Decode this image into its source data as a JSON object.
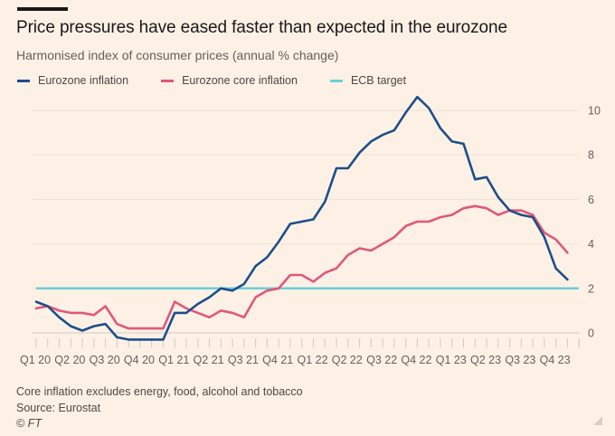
{
  "title": "Price pressures have eased faster than expected in the eurozone",
  "subtitle": "Harmonised index of consumer prices (annual % change)",
  "legend": [
    {
      "label": "Eurozone inflation",
      "color": "#1e4e8a"
    },
    {
      "label": "Eurozone core inflation",
      "color": "#e0587a"
    },
    {
      "label": "ECB target",
      "color": "#6ccfd8"
    }
  ],
  "notes": {
    "line1": "Core inflation excludes energy, food, alcohol and tobacco",
    "line2": "Source: Eurostat",
    "line3": "© FT"
  },
  "chart_data": {
    "type": "line",
    "title": "Price pressures have eased faster than expected in the eurozone",
    "subtitle": "Harmonised index of consumer prices (annual % change)",
    "xlabel": "",
    "ylabel": "",
    "frequency": "monthly",
    "x_start": "2020-01",
    "x_categories": [
      "Q1 20",
      "Q2 20",
      "Q3 20",
      "Q4 20",
      "Q1 21",
      "Q2 21",
      "Q3 21",
      "Q4 21",
      "Q1 22",
      "Q2 22",
      "Q3 22",
      "Q4 22",
      "Q1 23",
      "Q2 23",
      "Q3 23",
      "Q4 23"
    ],
    "yticks": [
      0,
      2,
      4,
      6,
      8,
      10
    ],
    "ylim": [
      -0.5,
      10.8
    ],
    "grid": true,
    "legend_position": "top-left",
    "yaxis_side": "right",
    "series": [
      {
        "name": "Eurozone inflation",
        "color": "#1e4e8a",
        "values": [
          1.4,
          1.2,
          0.7,
          0.3,
          0.1,
          0.3,
          0.4,
          -0.2,
          -0.3,
          -0.3,
          -0.3,
          -0.3,
          0.9,
          0.9,
          1.3,
          1.6,
          2.0,
          1.9,
          2.2,
          3.0,
          3.4,
          4.1,
          4.9,
          5.0,
          5.1,
          5.9,
          7.4,
          7.4,
          8.1,
          8.6,
          8.9,
          9.1,
          9.9,
          10.6,
          10.1,
          9.2,
          8.6,
          8.5,
          6.9,
          7.0,
          6.1,
          5.5,
          5.3,
          5.2,
          4.3,
          2.9,
          2.4
        ]
      },
      {
        "name": "Eurozone core inflation",
        "color": "#e0587a",
        "values": [
          1.1,
          1.2,
          1.0,
          0.9,
          0.9,
          0.8,
          1.2,
          0.4,
          0.2,
          0.2,
          0.2,
          0.2,
          1.4,
          1.1,
          0.9,
          0.7,
          1.0,
          0.9,
          0.7,
          1.6,
          1.9,
          2.0,
          2.6,
          2.6,
          2.3,
          2.7,
          2.9,
          3.5,
          3.8,
          3.7,
          4.0,
          4.3,
          4.8,
          5.0,
          5.0,
          5.2,
          5.3,
          5.6,
          5.7,
          5.6,
          5.3,
          5.5,
          5.5,
          5.3,
          4.5,
          4.2,
          3.6
        ]
      },
      {
        "name": "ECB target",
        "color": "#6ccfd8",
        "constant": 2
      }
    ]
  }
}
